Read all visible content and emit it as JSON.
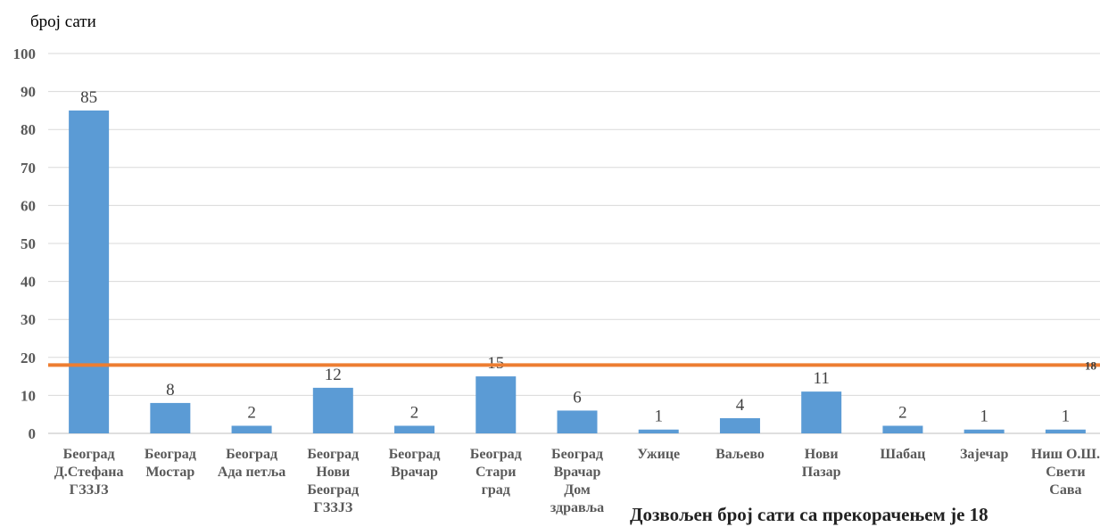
{
  "chart_data": {
    "type": "bar",
    "ylabel": "број сати",
    "ylim": [
      0,
      100
    ],
    "yticks": [
      0,
      10,
      20,
      30,
      40,
      50,
      60,
      70,
      80,
      90,
      100
    ],
    "grid": true,
    "categories": [
      [
        "Београд",
        "Д.Стефана",
        "ГЗЗЈЗ"
      ],
      [
        "Београд",
        "Мостар"
      ],
      [
        "Београд",
        "Ада петља"
      ],
      [
        "Београд",
        "Нови",
        "Београд",
        "ГЗЗЈЗ"
      ],
      [
        "Београд",
        "Врачар"
      ],
      [
        "Београд",
        "Стари",
        "град"
      ],
      [
        "Београд",
        "Врачар",
        "Дом",
        "здравља"
      ],
      [
        "Ужице"
      ],
      [
        "Ваљево"
      ],
      [
        "Нови",
        "Пазар"
      ],
      [
        "Шабац"
      ],
      [
        "Зајечар"
      ],
      [
        "Ниш О.Ш.",
        "Свети",
        "Сава"
      ]
    ],
    "values": [
      85,
      8,
      2,
      12,
      2,
      15,
      6,
      1,
      4,
      11,
      2,
      1,
      1
    ],
    "data_labels": [
      "85",
      "8",
      "2",
      "12",
      "2",
      "15",
      "6",
      "1",
      "4",
      "11",
      "2",
      "1",
      "1"
    ],
    "reference_line": {
      "value": 18,
      "label": "18"
    },
    "note": "Дозвољен број сати са прекорачењем је 18",
    "colors": {
      "bar": "#5B9BD5",
      "reference": "#ED7D31",
      "grid": "#D9D9D9",
      "axis": "#BFBFBF"
    }
  }
}
